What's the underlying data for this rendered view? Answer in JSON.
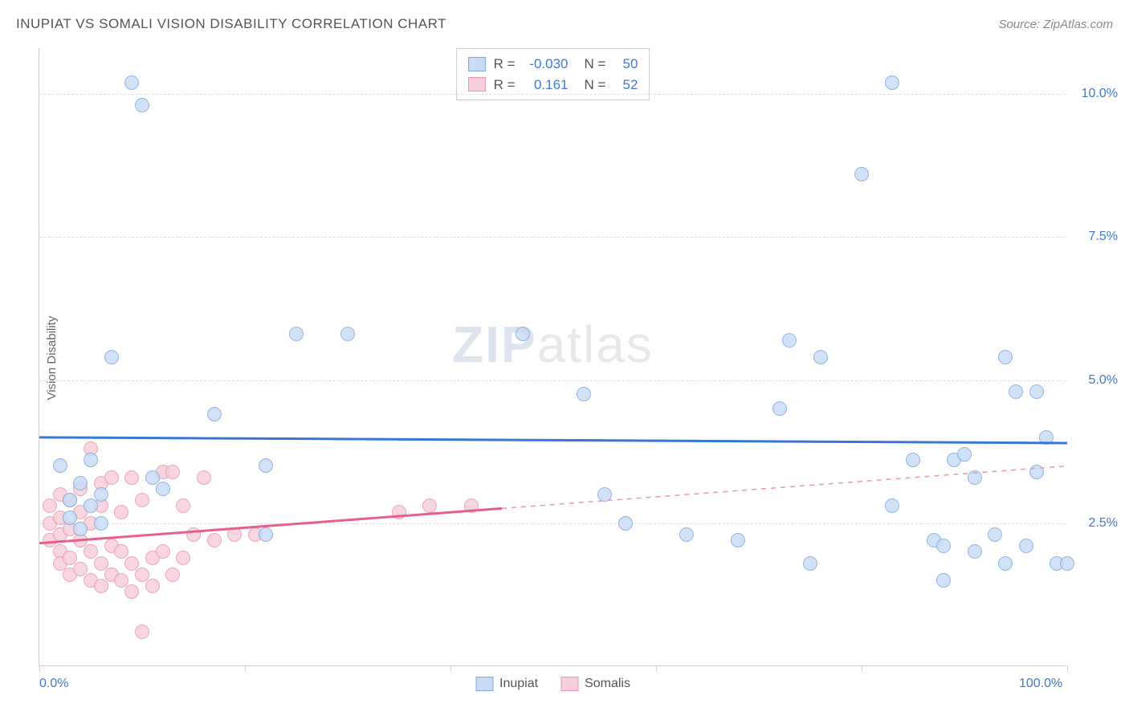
{
  "title": "INUPIAT VS SOMALI VISION DISABILITY CORRELATION CHART",
  "source": "Source: ZipAtlas.com",
  "y_axis_label": "Vision Disability",
  "watermark": {
    "bold": "ZIP",
    "light": "atlas"
  },
  "chart": {
    "type": "scatter",
    "xlim": [
      0,
      100
    ],
    "ylim": [
      0,
      10.8
    ],
    "y_gridlines": [
      2.5,
      5.0,
      7.5,
      10.0
    ],
    "y_tick_labels": [
      "2.5%",
      "5.0%",
      "7.5%",
      "10.0%"
    ],
    "x_ticks": [
      0,
      20,
      40,
      60,
      80,
      100
    ],
    "x_labels_shown": {
      "0": "0.0%",
      "100": "100.0%"
    },
    "background_color": "#ffffff",
    "grid_color": "#dddddd",
    "axis_color": "#cccccc",
    "label_color": "#4478c8",
    "point_radius": 9
  },
  "series": {
    "inupiat": {
      "label": "Inupiat",
      "fill": "#c9dcf5",
      "stroke": "#7ea9dd",
      "trend_color": "#3878d4",
      "trend_dash_color": "#3878d4",
      "R": "-0.030",
      "N": "50",
      "trend": {
        "x1": 0,
        "y1": 4.0,
        "x2": 100,
        "y2": 3.9,
        "solid_until_x": 100
      },
      "points": [
        [
          2,
          3.5
        ],
        [
          3,
          2.9
        ],
        [
          3,
          2.6
        ],
        [
          4,
          2.4
        ],
        [
          4,
          3.2
        ],
        [
          5,
          3.6
        ],
        [
          5,
          2.8
        ],
        [
          6,
          3.0
        ],
        [
          6,
          2.5
        ],
        [
          7,
          5.4
        ],
        [
          9,
          10.2
        ],
        [
          10,
          9.8
        ],
        [
          11,
          3.3
        ],
        [
          12,
          3.1
        ],
        [
          17,
          4.4
        ],
        [
          22,
          3.5
        ],
        [
          22,
          2.3
        ],
        [
          25,
          5.8
        ],
        [
          30,
          5.8
        ],
        [
          47,
          5.8
        ],
        [
          53,
          4.75
        ],
        [
          55,
          3.0
        ],
        [
          57,
          2.5
        ],
        [
          63,
          2.3
        ],
        [
          68,
          2.2
        ],
        [
          72,
          4.5
        ],
        [
          73,
          5.7
        ],
        [
          75,
          1.8
        ],
        [
          76,
          5.4
        ],
        [
          80,
          8.6
        ],
        [
          83,
          10.2
        ],
        [
          83,
          2.8
        ],
        [
          85,
          3.6
        ],
        [
          87,
          2.2
        ],
        [
          88,
          2.1
        ],
        [
          88,
          1.5
        ],
        [
          89,
          3.6
        ],
        [
          90,
          3.7
        ],
        [
          91,
          2.0
        ],
        [
          91,
          3.3
        ],
        [
          93,
          2.3
        ],
        [
          94,
          5.4
        ],
        [
          94,
          1.8
        ],
        [
          95,
          4.8
        ],
        [
          96,
          2.1
        ],
        [
          97,
          4.8
        ],
        [
          97,
          3.4
        ],
        [
          98,
          4.0
        ],
        [
          99,
          1.8
        ],
        [
          100,
          1.8
        ]
      ]
    },
    "somalis": {
      "label": "Somalis",
      "fill": "#f7cfda",
      "stroke": "#e996b0",
      "trend_color": "#e65f8e",
      "trend_dash_color": "#e996b0",
      "R": "0.161",
      "N": "52",
      "trend": {
        "x1": 0,
        "y1": 2.15,
        "x2": 100,
        "y2": 3.5,
        "solid_until_x": 45
      },
      "points": [
        [
          1,
          2.5
        ],
        [
          1,
          2.2
        ],
        [
          1,
          2.8
        ],
        [
          2,
          2.3
        ],
        [
          2,
          2.0
        ],
        [
          2,
          2.6
        ],
        [
          2,
          3.0
        ],
        [
          2,
          1.8
        ],
        [
          3,
          2.9
        ],
        [
          3,
          2.4
        ],
        [
          3,
          1.9
        ],
        [
          3,
          1.6
        ],
        [
          4,
          2.7
        ],
        [
          4,
          2.2
        ],
        [
          4,
          3.1
        ],
        [
          4,
          1.7
        ],
        [
          5,
          3.8
        ],
        [
          5,
          2.0
        ],
        [
          5,
          1.5
        ],
        [
          5,
          2.5
        ],
        [
          6,
          2.8
        ],
        [
          6,
          1.8
        ],
        [
          6,
          1.4
        ],
        [
          6,
          3.2
        ],
        [
          7,
          2.1
        ],
        [
          7,
          1.6
        ],
        [
          7,
          3.3
        ],
        [
          8,
          2.0
        ],
        [
          8,
          1.5
        ],
        [
          8,
          2.7
        ],
        [
          9,
          1.3
        ],
        [
          9,
          3.3
        ],
        [
          9,
          1.8
        ],
        [
          10,
          1.6
        ],
        [
          10,
          2.9
        ],
        [
          10,
          0.6
        ],
        [
          11,
          1.9
        ],
        [
          11,
          1.4
        ],
        [
          12,
          3.4
        ],
        [
          12,
          2.0
        ],
        [
          13,
          1.6
        ],
        [
          13,
          3.4
        ],
        [
          14,
          2.8
        ],
        [
          14,
          1.9
        ],
        [
          15,
          2.3
        ],
        [
          16,
          3.3
        ],
        [
          17,
          2.2
        ],
        [
          19,
          2.3
        ],
        [
          21,
          2.3
        ],
        [
          35,
          2.7
        ],
        [
          38,
          2.8
        ],
        [
          42,
          2.8
        ]
      ]
    }
  },
  "stats_legend_labels": {
    "R": "R =",
    "N": "N ="
  },
  "series_legend_order": [
    "inupiat",
    "somalis"
  ]
}
